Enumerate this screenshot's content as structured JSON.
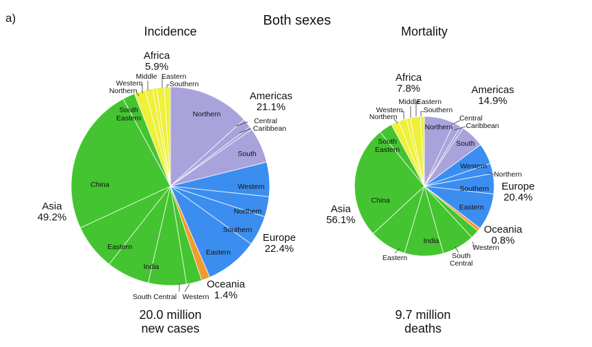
{
  "figure": {
    "panel_label": "a)",
    "heading": "Both sexes"
  },
  "colors": {
    "Africa": "#eef03a",
    "Americas": "#a9a3dc",
    "Europe": "#3b8ef0",
    "Oceania": "#f39a2e",
    "Asia": "#44c430"
  },
  "chart_data": [
    {
      "type": "pie",
      "id": "incidence",
      "title": "Incidence",
      "total_label_line1": "20.0 million",
      "total_label_line2": "new cases",
      "regions": [
        {
          "name": "Americas",
          "label": "Americas",
          "pct_label": "21.1%",
          "value": 21.1
        },
        {
          "name": "Europe",
          "label": "Europe",
          "pct_label": "22.4%",
          "value": 22.4
        },
        {
          "name": "Oceania",
          "label": "Oceania",
          "pct_label": "1.4%",
          "value": 1.4
        },
        {
          "name": "Asia",
          "label": "Asia",
          "pct_label": "49.2%",
          "value": 49.2
        },
        {
          "name": "Africa",
          "label": "Africa",
          "pct_label": "5.9%",
          "value": 5.9
        }
      ],
      "slices": [
        {
          "region": "Americas",
          "sub": "Northern",
          "value": 13.3
        },
        {
          "region": "Americas",
          "sub": "Central",
          "value": 1.5
        },
        {
          "region": "Americas",
          "sub": "Caribbean",
          "value": 0.5
        },
        {
          "region": "Americas",
          "sub": "South",
          "value": 5.8
        },
        {
          "region": "Europe",
          "sub": "Western",
          "value": 5.6
        },
        {
          "region": "Europe",
          "sub": "Northern",
          "value": 3.3
        },
        {
          "region": "Europe",
          "sub": "Southern",
          "value": 4.9
        },
        {
          "region": "Europe",
          "sub": "Eastern",
          "value": 8.6
        },
        {
          "region": "Oceania",
          "sub": "",
          "value": 1.4
        },
        {
          "region": "Asia",
          "sub": "Western",
          "value": 2.5
        },
        {
          "region": "Asia",
          "sub": "South Central",
          "value": 6.2
        },
        {
          "region": "Asia",
          "sub": "India",
          "value": 7.0
        },
        {
          "region": "Asia",
          "sub": "Eastern",
          "value": 7.5
        },
        {
          "region": "Asia",
          "sub": "China",
          "value": 24.0
        },
        {
          "region": "Asia",
          "sub": "South Eastern",
          "value": 2.0
        },
        {
          "region": "Africa",
          "sub": "Northern",
          "value": 1.8
        },
        {
          "region": "Africa",
          "sub": "Western",
          "value": 1.2
        },
        {
          "region": "Africa",
          "sub": "Middle",
          "value": 0.7
        },
        {
          "region": "Africa",
          "sub": "Eastern",
          "value": 1.2
        },
        {
          "region": "Africa",
          "sub": "Southern",
          "value": 1.0
        }
      ]
    },
    {
      "type": "pie",
      "id": "mortality",
      "title": "Mortality",
      "total_label_line1": "9.7 million",
      "total_label_line2": "deaths",
      "regions": [
        {
          "name": "Americas",
          "label": "Americas",
          "pct_label": "14.9%",
          "value": 14.9
        },
        {
          "name": "Europe",
          "label": "Europe",
          "pct_label": "20.4%",
          "value": 20.4
        },
        {
          "name": "Oceania",
          "label": "Oceania",
          "pct_label": "0.8%",
          "value": 0.8
        },
        {
          "name": "Asia",
          "label": "Asia",
          "pct_label": "56.1%",
          "value": 56.1
        },
        {
          "name": "Africa",
          "label": "Africa",
          "pct_label": "7.8%",
          "value": 7.8
        }
      ],
      "slices": [
        {
          "region": "Americas",
          "sub": "Northern",
          "value": 7.0
        },
        {
          "region": "Americas",
          "sub": "Central",
          "value": 1.7
        },
        {
          "region": "Americas",
          "sub": "Caribbean",
          "value": 0.7
        },
        {
          "region": "Americas",
          "sub": "South",
          "value": 5.5
        },
        {
          "region": "Europe",
          "sub": "Western",
          "value": 4.8
        },
        {
          "region": "Europe",
          "sub": "Northern",
          "value": 2.4
        },
        {
          "region": "Europe",
          "sub": "Southern",
          "value": 4.7
        },
        {
          "region": "Europe",
          "sub": "Eastern",
          "value": 8.5
        },
        {
          "region": "Oceania",
          "sub": "",
          "value": 0.8
        },
        {
          "region": "Asia",
          "sub": "Western",
          "value": 2.0
        },
        {
          "region": "Asia",
          "sub": "South Central",
          "value": 7.5
        },
        {
          "region": "Asia",
          "sub": "India",
          "value": 9.0
        },
        {
          "region": "Asia",
          "sub": "Eastern",
          "value": 8.5
        },
        {
          "region": "Asia",
          "sub": "China",
          "value": 26.0
        },
        {
          "region": "Asia",
          "sub": "South Eastern",
          "value": 3.1
        },
        {
          "region": "Africa",
          "sub": "Northern",
          "value": 1.8
        },
        {
          "region": "Africa",
          "sub": "Western",
          "value": 1.8
        },
        {
          "region": "Africa",
          "sub": "Middle",
          "value": 0.9
        },
        {
          "region": "Africa",
          "sub": "Eastern",
          "value": 2.4
        },
        {
          "region": "Africa",
          "sub": "Southern",
          "value": 0.9
        }
      ]
    }
  ]
}
